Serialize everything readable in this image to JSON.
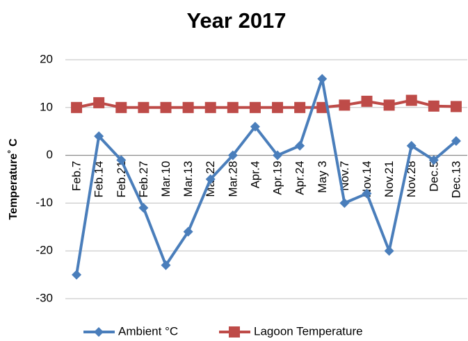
{
  "chart_data": {
    "type": "line",
    "title": "Year 2017",
    "y_label": "Temperature˚ C",
    "categories": [
      "Feb.7",
      "Feb.14",
      "Feb.21",
      "Feb.27",
      "Mar.10",
      "Mar.13",
      "Mar.22",
      "Mar.28",
      "Apr.4",
      "Apr.19",
      "Apr.24",
      "May 3",
      "Nov.7",
      "Nov.14",
      "Nov.21",
      "Nov.28",
      "Dec.5",
      "Dec.13"
    ],
    "series": [
      {
        "name": "Ambient °C",
        "color": "#4a7ebb",
        "marker": "diamond",
        "values": [
          -25,
          4,
          -1,
          -11,
          -23,
          -16,
          -5,
          0,
          6,
          0,
          2,
          16,
          -10,
          -8,
          -20,
          2,
          -1,
          3
        ]
      },
      {
        "name": "Lagoon Temperature",
        "color": "#be4b48",
        "marker": "square",
        "values": [
          10,
          11,
          10,
          10,
          10,
          10,
          10,
          10,
          10,
          10,
          10,
          10,
          10.5,
          11.3,
          10.5,
          11.5,
          10.3,
          10.2
        ]
      }
    ],
    "ylim": [
      -30,
      20
    ],
    "yticks": [
      -30,
      -20,
      -10,
      0,
      10,
      20
    ],
    "grid": true,
    "legend": "bottom"
  }
}
